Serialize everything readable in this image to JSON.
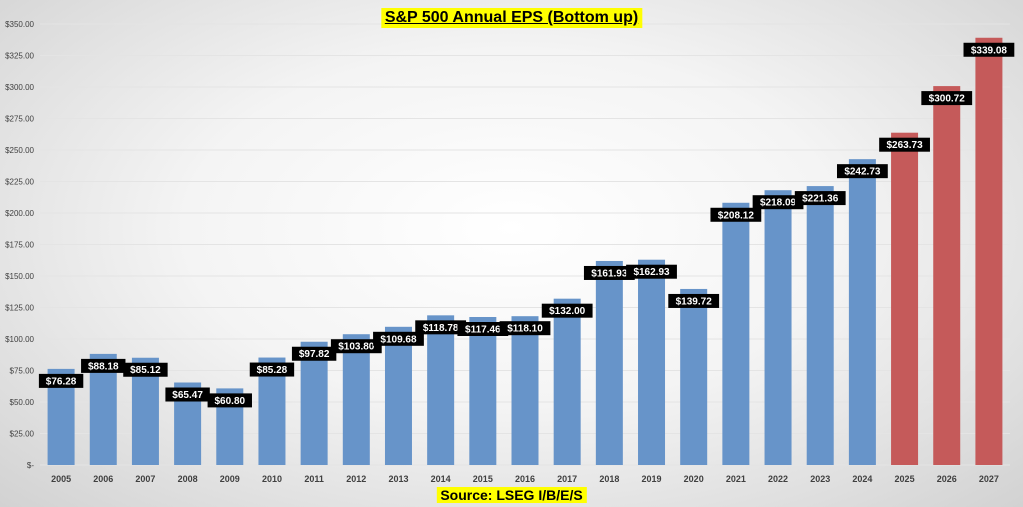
{
  "chart_data": {
    "type": "bar",
    "title": "S&P 500 Annual EPS (Bottom up)",
    "source": "Source: LSEG I/B/E/S",
    "xlabel": "",
    "ylabel": "",
    "ylim": [
      0,
      350
    ],
    "y_ticks": [
      {
        "value": 0,
        "label": "$-"
      },
      {
        "value": 25,
        "label": "$25.00"
      },
      {
        "value": 50,
        "label": "$50.00"
      },
      {
        "value": 75,
        "label": "$75.00"
      },
      {
        "value": 100,
        "label": "$100.00"
      },
      {
        "value": 125,
        "label": "$125.00"
      },
      {
        "value": 150,
        "label": "$150.00"
      },
      {
        "value": 175,
        "label": "$175.00"
      },
      {
        "value": 200,
        "label": "$200.00"
      },
      {
        "value": 225,
        "label": "$225.00"
      },
      {
        "value": 250,
        "label": "$250.00"
      },
      {
        "value": 275,
        "label": "$275.00"
      },
      {
        "value": 300,
        "label": "$300.00"
      },
      {
        "value": 325,
        "label": "$325.00"
      },
      {
        "value": 350,
        "label": "$350.00"
      }
    ],
    "grid": true,
    "categories": [
      "2005",
      "2006",
      "2007",
      "2008",
      "2009",
      "2010",
      "2011",
      "2012",
      "2013",
      "2014",
      "2015",
      "2016",
      "2017",
      "2018",
      "2019",
      "2020",
      "2021",
      "2022",
      "2023",
      "2024",
      "2025",
      "2026",
      "2027"
    ],
    "values": [
      76.28,
      88.18,
      85.12,
      65.47,
      60.8,
      85.28,
      97.82,
      103.8,
      109.68,
      118.78,
      117.46,
      118.1,
      132.0,
      161.93,
      162.93,
      139.72,
      208.12,
      218.09,
      221.36,
      242.73,
      263.73,
      300.72,
      339.08
    ],
    "labels": [
      "$76.28",
      "$88.18",
      "$85.12",
      "$65.47",
      "$60.80",
      "$85.28",
      "$97.82",
      "$103.80",
      "$109.68",
      "$118.78",
      "$117.46",
      "$118.10",
      "$132.00",
      "$161.93",
      "$162.93",
      "$139.72",
      "$208.12",
      "$218.09",
      "$221.36",
      "$242.73",
      "$263.73",
      "$300.72",
      "$339.08"
    ],
    "estimate": [
      false,
      false,
      false,
      false,
      false,
      false,
      false,
      false,
      false,
      false,
      false,
      false,
      false,
      false,
      false,
      false,
      false,
      false,
      false,
      false,
      true,
      true,
      true
    ],
    "colors": {
      "actual": "#6794c9",
      "estimate": "#c55a5a",
      "label_bg": "#000000",
      "label_text": "#ffffff",
      "grid": "#e4e4e4",
      "axis_text": "#404040",
      "highlight": "#ffff00"
    }
  }
}
